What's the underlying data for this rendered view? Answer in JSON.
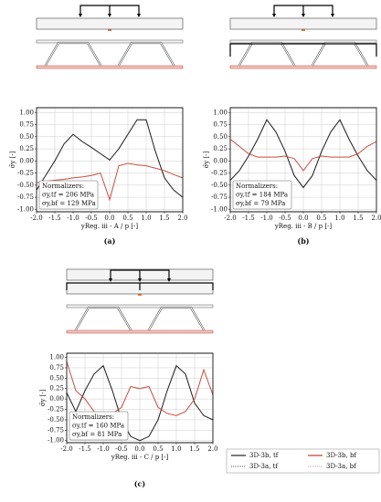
{
  "chart_data": [
    {
      "type": "line",
      "caption": "(a)",
      "ylabel": "σ̄y [-]",
      "xlabel": "yReg. iii - A / p [-]",
      "annotation": [
        "Normalizers:",
        "σy,tf = 206 MPa",
        "σy,bf = 129 MPa"
      ],
      "x": [
        -2,
        -1.75,
        -1.5,
        -1.25,
        -1,
        -0.75,
        -0.5,
        -0.25,
        0,
        0.25,
        0.5,
        0.75,
        1,
        1.25,
        1.5,
        1.75,
        2
      ],
      "series": [
        {
          "color": "#222222",
          "style": "solid",
          "values": [
            -0.6,
            -0.3,
            0.0,
            0.35,
            0.55,
            0.4,
            0.28,
            0.15,
            0.02,
            0.25,
            0.55,
            0.85,
            0.85,
            0.2,
            -0.35,
            -0.6,
            -0.75
          ]
        },
        {
          "color": "#c0392b",
          "style": "solid",
          "values": [
            -0.45,
            -0.42,
            -0.4,
            -0.38,
            -0.35,
            -0.33,
            -0.3,
            -0.25,
            -0.8,
            -0.1,
            -0.05,
            -0.08,
            -0.1,
            -0.15,
            -0.2,
            -0.28,
            -0.35
          ]
        },
        {
          "color": "#222222",
          "style": "dotted",
          "values": [
            -0.6,
            -0.3,
            0.0,
            0.35,
            0.55,
            0.4,
            0.28,
            0.15,
            0.02,
            0.25,
            0.55,
            0.85,
            0.85,
            0.2,
            -0.35,
            -0.6,
            -0.75
          ]
        },
        {
          "color": "#e08070",
          "style": "dotted",
          "values": [
            -0.45,
            -0.42,
            -0.4,
            -0.38,
            -0.35,
            -0.33,
            -0.3,
            -0.25,
            -0.8,
            -0.1,
            -0.05,
            -0.08,
            -0.1,
            -0.15,
            -0.2,
            -0.28,
            -0.35
          ]
        }
      ],
      "xlim": [
        -2,
        2
      ],
      "ylim": [
        -1.05,
        1.1
      ],
      "xticks": [
        {
          "value": -2,
          "label": "-2.0"
        },
        {
          "value": -1.5,
          "label": "-1.5"
        },
        {
          "value": -1,
          "label": "-1.0"
        },
        {
          "value": -0.5,
          "label": "-0.5"
        },
        {
          "value": 0,
          "label": "0.0"
        },
        {
          "value": 0.5,
          "label": "0.5"
        },
        {
          "value": 1,
          "label": "1.0"
        },
        {
          "value": 1.5,
          "label": "1.5"
        },
        {
          "value": 2,
          "label": "2.0"
        }
      ],
      "yticks": [
        {
          "value": -1,
          "label": "-1.00"
        },
        {
          "value": -0.75,
          "label": "-0.75"
        },
        {
          "value": -0.5,
          "label": "-0.50"
        },
        {
          "value": -0.25,
          "label": "-0.25"
        },
        {
          "value": 0,
          "label": "0.00"
        },
        {
          "value": 0.25,
          "label": "0.25"
        },
        {
          "value": 0.5,
          "label": "0.50"
        },
        {
          "value": 0.75,
          "label": "0.75"
        },
        {
          "value": 1,
          "label": "1.00"
        }
      ],
      "grid": true
    },
    {
      "type": "line",
      "caption": "(b)",
      "ylabel": "σ̄y [-]",
      "xlabel": "yReg. iii - B / p [-]",
      "annotation": [
        "Normalizers:",
        "σy,tf = 184 MPa",
        "σy,bf = 79 MPa"
      ],
      "x": [
        -2,
        -1.75,
        -1.5,
        -1.25,
        -1,
        -0.75,
        -0.5,
        -0.25,
        0,
        0.25,
        0.5,
        0.75,
        1,
        1.25,
        1.5,
        1.75,
        2
      ],
      "series": [
        {
          "color": "#222222",
          "style": "solid",
          "values": [
            -0.4,
            -0.2,
            0.1,
            0.45,
            0.85,
            0.6,
            0.2,
            -0.3,
            -0.55,
            -0.3,
            0.2,
            0.6,
            0.85,
            0.45,
            0.1,
            -0.2,
            -0.4
          ]
        },
        {
          "color": "#c0392b",
          "style": "solid",
          "values": [
            0.45,
            0.3,
            0.15,
            0.08,
            0.08,
            0.08,
            0.1,
            0.05,
            -0.2,
            0.05,
            0.1,
            0.08,
            0.08,
            0.08,
            0.15,
            0.3,
            0.4
          ]
        },
        {
          "color": "#222222",
          "style": "dotted",
          "values": [
            -0.4,
            -0.2,
            0.1,
            0.45,
            0.85,
            0.6,
            0.2,
            -0.3,
            -0.55,
            -0.3,
            0.2,
            0.6,
            0.85,
            0.45,
            0.1,
            -0.2,
            -0.4
          ]
        },
        {
          "color": "#e08070",
          "style": "dotted",
          "values": [
            0.45,
            0.3,
            0.15,
            0.08,
            0.08,
            0.08,
            0.1,
            0.05,
            -0.2,
            0.05,
            0.1,
            0.08,
            0.08,
            0.08,
            0.15,
            0.3,
            0.4
          ]
        }
      ],
      "xlim": [
        -2,
        2
      ],
      "ylim": [
        -1.05,
        1.1
      ],
      "xticks": [
        {
          "value": -2,
          "label": "-2.0"
        },
        {
          "value": -1.5,
          "label": "-1.5"
        },
        {
          "value": -1,
          "label": "-1.0"
        },
        {
          "value": -0.5,
          "label": "-0.5"
        },
        {
          "value": 0,
          "label": "0.0"
        },
        {
          "value": 0.5,
          "label": "0.5"
        },
        {
          "value": 1,
          "label": "1.0"
        },
        {
          "value": 1.5,
          "label": "1.5"
        },
        {
          "value": 2,
          "label": "2.0"
        }
      ],
      "yticks": [
        {
          "value": -1,
          "label": "-1.00"
        },
        {
          "value": -0.75,
          "label": "-0.75"
        },
        {
          "value": -0.5,
          "label": "-0.50"
        },
        {
          "value": -0.25,
          "label": "-0.25"
        },
        {
          "value": 0,
          "label": "0.00"
        },
        {
          "value": 0.25,
          "label": "0.25"
        },
        {
          "value": 0.5,
          "label": "0.50"
        },
        {
          "value": 0.75,
          "label": "0.75"
        },
        {
          "value": 1,
          "label": "1.00"
        }
      ],
      "grid": true
    },
    {
      "type": "line",
      "caption": "(c)",
      "ylabel": "σ̄y [-]",
      "xlabel": "yReg. iii - C / p [-]",
      "annotation": [
        "Normalizers:",
        "σy,tf = 160 MPa",
        "σy,bf = 81 MPa"
      ],
      "x": [
        -2,
        -1.75,
        -1.5,
        -1.25,
        -1,
        -0.75,
        -0.5,
        -0.25,
        0,
        0.25,
        0.5,
        0.75,
        1,
        1.25,
        1.5,
        1.75,
        2
      ],
      "series": [
        {
          "name": "3D-3b, tf",
          "color": "#222222",
          "style": "solid",
          "values": [
            0.15,
            -0.3,
            0.2,
            0.6,
            0.8,
            0.2,
            -0.5,
            -0.9,
            -1.0,
            -0.9,
            -0.5,
            0.2,
            0.8,
            0.6,
            -0.1,
            -0.4,
            -0.5
          ]
        },
        {
          "name": "3D-3b, bf",
          "color": "#c0392b",
          "style": "solid",
          "values": [
            0.9,
            0.2,
            0.0,
            -0.3,
            -0.4,
            -0.35,
            -0.2,
            0.3,
            0.25,
            0.3,
            -0.2,
            -0.35,
            -0.4,
            -0.3,
            0.0,
            0.7,
            0.1
          ]
        },
        {
          "name": "3D-3a, tf",
          "color": "#222222",
          "style": "dotted",
          "values": [
            0.15,
            -0.3,
            0.2,
            0.6,
            0.8,
            0.2,
            -0.5,
            -0.9,
            -1.0,
            -0.9,
            -0.5,
            0.2,
            0.8,
            0.6,
            -0.1,
            -0.4,
            -0.5
          ]
        },
        {
          "name": "3D-3a, bf",
          "color": "#e08070",
          "style": "dotted",
          "values": [
            0.9,
            0.2,
            0.0,
            -0.3,
            -0.4,
            -0.35,
            -0.2,
            0.3,
            0.25,
            0.3,
            -0.2,
            -0.35,
            -0.4,
            -0.3,
            0.0,
            0.7,
            0.1
          ]
        }
      ],
      "xlim": [
        -2,
        2
      ],
      "ylim": [
        -1.05,
        1.1
      ],
      "xticks": [
        {
          "value": -2,
          "label": "-2.0"
        },
        {
          "value": -1.5,
          "label": "-1.5"
        },
        {
          "value": -1,
          "label": "-1.0"
        },
        {
          "value": -0.5,
          "label": "-0.5"
        },
        {
          "value": 0,
          "label": "0.0"
        },
        {
          "value": 0.5,
          "label": "0.5"
        },
        {
          "value": 1,
          "label": "1.0"
        },
        {
          "value": 1.5,
          "label": "1.5"
        },
        {
          "value": 2,
          "label": "2.0"
        }
      ],
      "yticks": [
        {
          "value": -1,
          "label": "-1.00"
        },
        {
          "value": -0.75,
          "label": "-0.75"
        },
        {
          "value": -0.5,
          "label": "-0.50"
        },
        {
          "value": -0.25,
          "label": "-0.25"
        },
        {
          "value": 0,
          "label": "0.00"
        },
        {
          "value": 0.25,
          "label": "0.25"
        },
        {
          "value": 0.5,
          "label": "0.50"
        },
        {
          "value": 0.75,
          "label": "0.75"
        },
        {
          "value": 1,
          "label": "1.00"
        }
      ],
      "grid": true,
      "legend": "below-right"
    }
  ]
}
